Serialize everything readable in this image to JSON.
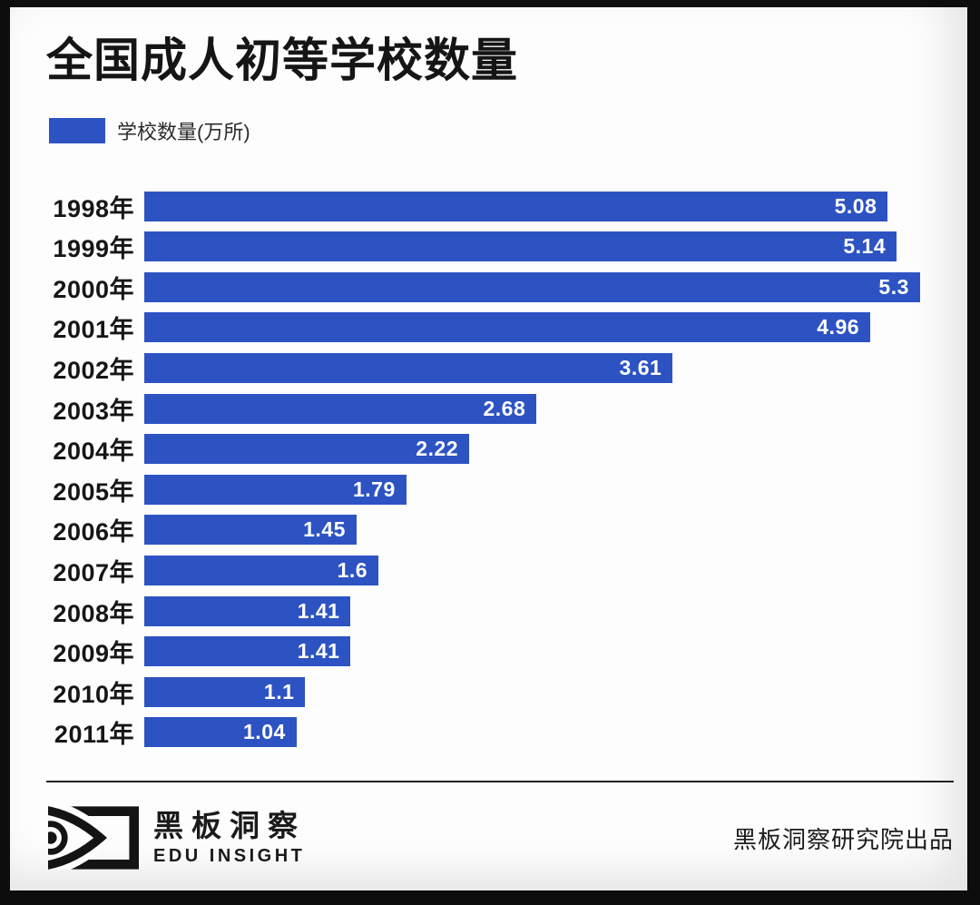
{
  "title": "全国成人初等学校数量",
  "legend": {
    "label": "学校数量(万所)",
    "swatch_color": "#2d53c3"
  },
  "chart_data": {
    "type": "bar",
    "orientation": "horizontal",
    "title": "全国成人初等学校数量",
    "series_name": "学校数量(万所)",
    "categories": [
      "1998年",
      "1999年",
      "2000年",
      "2001年",
      "2002年",
      "2003年",
      "2004年",
      "2005年",
      "2006年",
      "2007年",
      "2008年",
      "2009年",
      "2010年",
      "2011年"
    ],
    "values": [
      5.08,
      5.14,
      5.3,
      4.96,
      3.61,
      2.68,
      2.22,
      1.79,
      1.45,
      1.6,
      1.41,
      1.41,
      1.1,
      1.04
    ],
    "xlabel": "",
    "ylabel": "",
    "xlim": [
      0,
      5.53
    ],
    "grid": false,
    "legend_position": "top-left",
    "bar_color": "#2d53c3",
    "value_label_color": "#ffffff",
    "value_labels_inside_bar": true
  },
  "footer": {
    "logo_title": "黑板洞察",
    "logo_subtitle": "EDU INSIGHT",
    "credit": "黑板洞察研究院出品"
  },
  "colors": {
    "frame": "#0d0d0d",
    "card_background": "#fdfdfd",
    "bar": "#2d53c3",
    "text": "#151515"
  }
}
